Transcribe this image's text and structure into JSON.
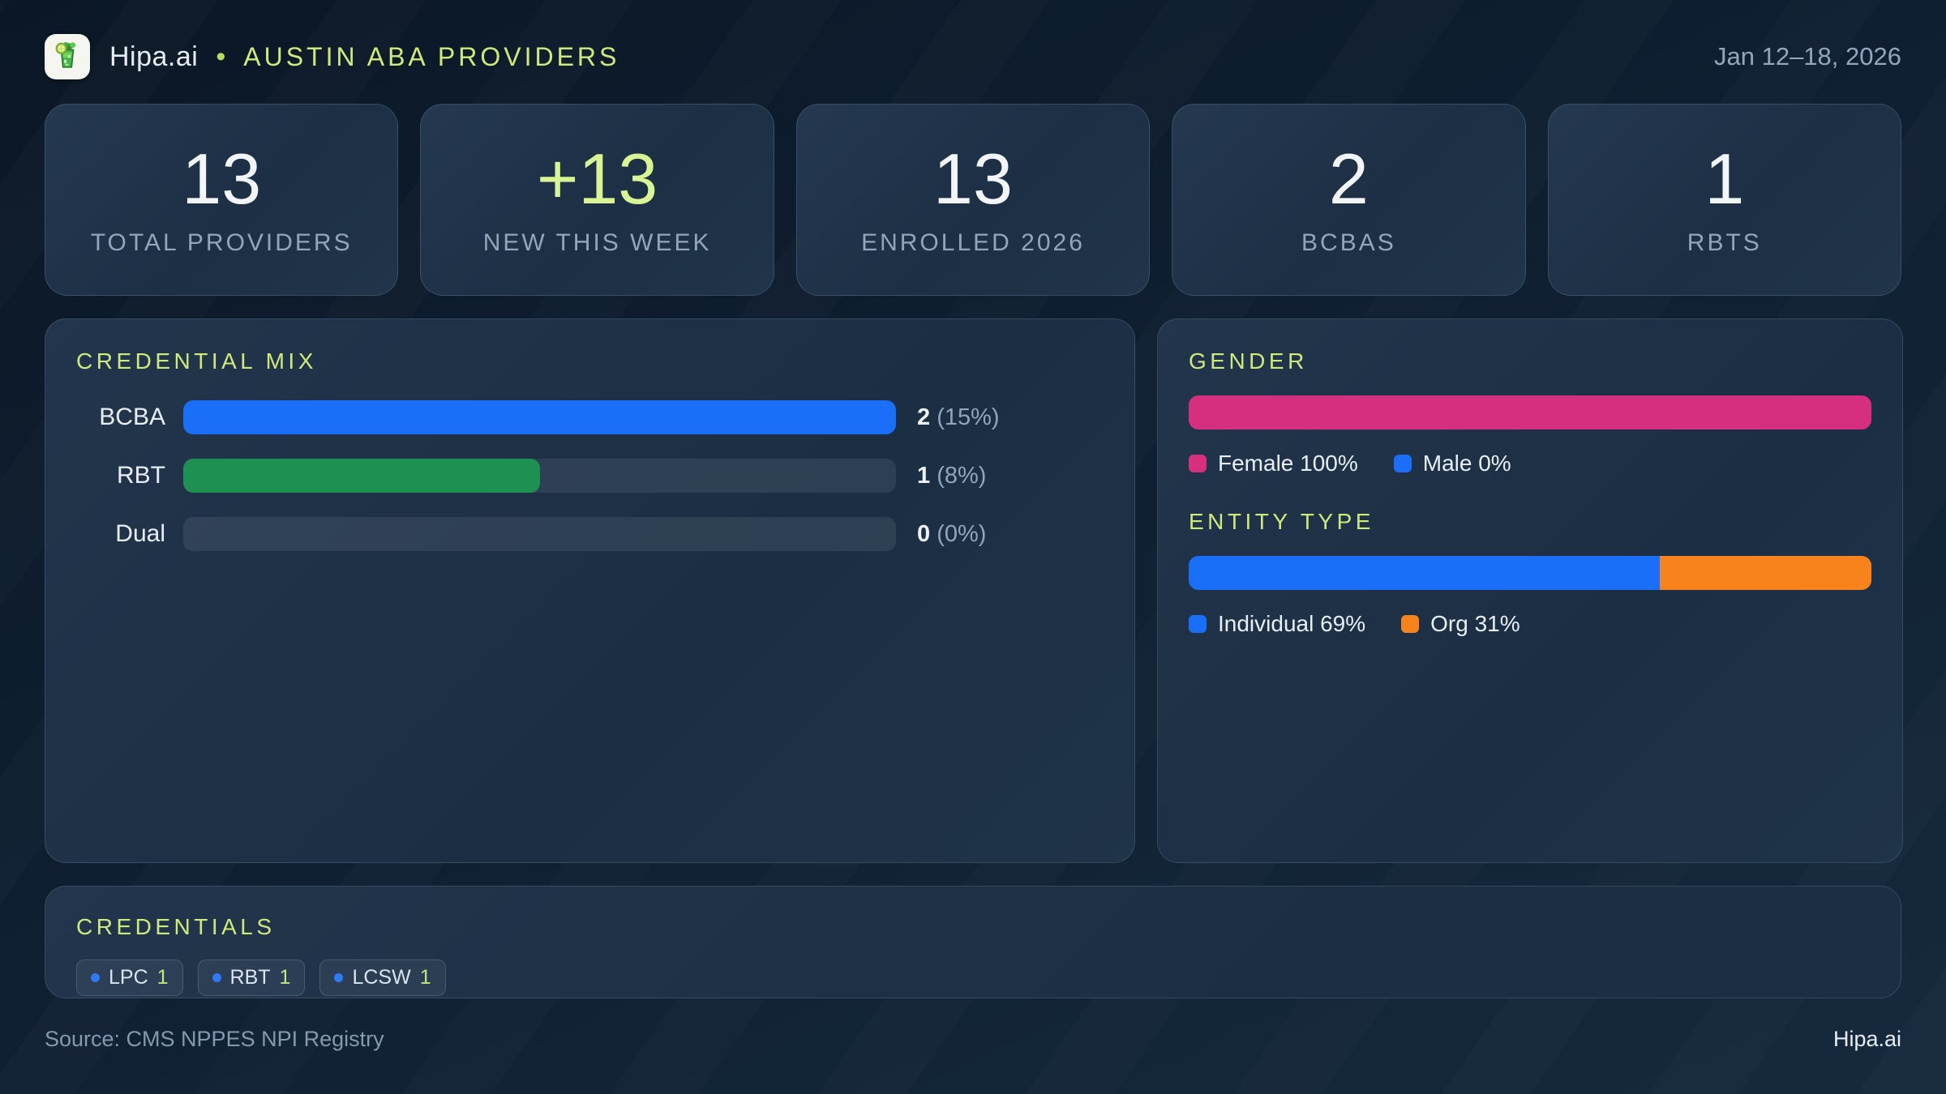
{
  "header": {
    "brand": "Hipa.ai",
    "separator": "•",
    "title": "AUSTIN ABA PROVIDERS",
    "date_range": "Jan 12–18, 2026"
  },
  "stats": [
    {
      "value": "13",
      "label": "TOTAL PROVIDERS",
      "accent": false
    },
    {
      "value": "+13",
      "label": "NEW THIS WEEK",
      "accent": true
    },
    {
      "value": "13",
      "label": "ENROLLED 2026",
      "accent": false
    },
    {
      "value": "2",
      "label": "BCBAS",
      "accent": false
    },
    {
      "value": "1",
      "label": "RBTS",
      "accent": false
    }
  ],
  "credential_mix": {
    "title": "CREDENTIAL MIX",
    "rows": [
      {
        "label": "BCBA",
        "value": "2",
        "pct": "(15%)",
        "fill_pct": 100,
        "color": "#1a6ef8"
      },
      {
        "label": "RBT",
        "value": "1",
        "pct": "(8%)",
        "fill_pct": 50,
        "color": "#1e9152"
      },
      {
        "label": "Dual",
        "value": "0",
        "pct": "(0%)",
        "fill_pct": 0,
        "color": "#1a6ef8"
      }
    ]
  },
  "gender": {
    "title": "GENDER",
    "segments": [
      {
        "name": "Female",
        "value_pct": 100,
        "color": "#d62f80"
      },
      {
        "name": "Male",
        "value_pct": 0,
        "color": "#1a6ef8"
      }
    ],
    "legend": [
      {
        "text": "Female 100%",
        "color": "#d62f80"
      },
      {
        "text": "Male 0%",
        "color": "#1a6ef8"
      }
    ]
  },
  "entity_type": {
    "title": "ENTITY TYPE",
    "segments": [
      {
        "name": "Individual",
        "value_pct": 69,
        "color": "#1a6ef8"
      },
      {
        "name": "Org",
        "value_pct": 31,
        "color": "#f8821b"
      }
    ],
    "legend": [
      {
        "text": "Individual 69%",
        "color": "#1a6ef8"
      },
      {
        "text": "Org 31%",
        "color": "#f8821b"
      }
    ]
  },
  "credentials": {
    "title": "CREDENTIALS",
    "chips": [
      {
        "label": "LPC",
        "count": "1"
      },
      {
        "label": "RBT",
        "count": "1"
      },
      {
        "label": "LCSW",
        "count": "1"
      }
    ]
  },
  "footer": {
    "source": "Source: CMS NPPES NPI Registry",
    "brand": "Hipa.ai"
  },
  "colors": {
    "background": "#0f1f31",
    "panel": "#1e3045",
    "accent_lime": "#cfe97c",
    "blue": "#1a6ef8",
    "green": "#1e9152",
    "pink": "#d62f80",
    "orange": "#f8821b",
    "text_primary": "#eef3f9",
    "text_muted": "#93a5ba"
  }
}
